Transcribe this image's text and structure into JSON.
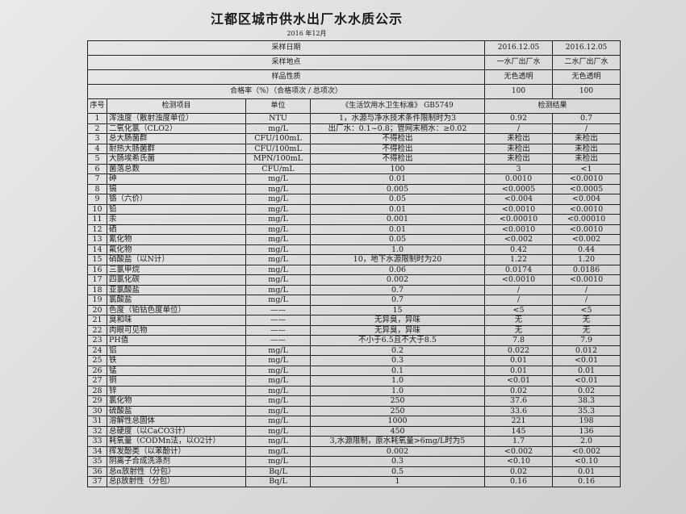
{
  "title": "江都区城市供水出厂水水质公示",
  "subtitle": "2016 年12月",
  "header": {
    "sample_date_label": "采样日期",
    "sample_dates": [
      "2016.12.05",
      "2016.12.05"
    ],
    "sample_site_label": "采样地点",
    "sample_sites": [
      "一水厂出厂水",
      "二水厂出厂水"
    ],
    "sample_nature_label": "样品性质",
    "sample_natures": [
      "无色透明",
      "无色透明"
    ],
    "pass_rate_label": "合格率（%）（合格项次 / 总项次）",
    "pass_rates": [
      "100",
      "100"
    ]
  },
  "columns": {
    "seq": "序号",
    "item": "检测项目",
    "unit": "单位",
    "standard": "《生活饮用水卫生标准》 GB5749",
    "result": "检测结果"
  },
  "rows": [
    {
      "no": "1",
      "item": "浑浊度（散射浊度单位）",
      "unit": "NTU",
      "std": "1，水源与净水技术条件限制时为3",
      "r1": "0.92",
      "r2": "0.7"
    },
    {
      "no": "2",
      "item": "二氧化氯（CLO2）",
      "unit": "mg/L",
      "std": "出厂水：0.1~0.8；管网末梢水：≥0.02",
      "r1": "/",
      "r2": "/"
    },
    {
      "no": "3",
      "item": "总大肠菌群",
      "unit": "CFU/100mL",
      "std": "不得检出",
      "r1": "未检出",
      "r2": "未检出"
    },
    {
      "no": "4",
      "item": "耐热大肠菌群",
      "unit": "CFU/100mL",
      "std": "不得检出",
      "r1": "未检出",
      "r2": "未检出"
    },
    {
      "no": "5",
      "item": "大肠埃希氏菌",
      "unit": "MPN/100mL",
      "std": "不得检出",
      "r1": "未检出",
      "r2": "未检出"
    },
    {
      "no": "6",
      "item": "菌落总数",
      "unit": "CFU/mL",
      "std": "100",
      "r1": "3",
      "r2": "<1"
    },
    {
      "no": "7",
      "item": "砷",
      "unit": "mg/L",
      "std": "0.01",
      "r1": "0.0010",
      "r2": "<0.0010"
    },
    {
      "no": "8",
      "item": "镉",
      "unit": "mg/L",
      "std": "0.005",
      "r1": "<0.0005",
      "r2": "<0.0005"
    },
    {
      "no": "9",
      "item": "铬（六价）",
      "unit": "mg/L",
      "std": "0.05",
      "r1": "<0.004",
      "r2": "<0.004"
    },
    {
      "no": "10",
      "item": "铅",
      "unit": "mg/L",
      "std": "0.01",
      "r1": "<0.0010",
      "r2": "<0.0010"
    },
    {
      "no": "11",
      "item": "汞",
      "unit": "mg/L",
      "std": "0.001",
      "r1": "<0.00010",
      "r2": "<0.00010"
    },
    {
      "no": "12",
      "item": "硒",
      "unit": "mg/L",
      "std": "0.01",
      "r1": "<0.0010",
      "r2": "<0.0010"
    },
    {
      "no": "13",
      "item": "氰化物",
      "unit": "mg/L",
      "std": "0.05",
      "r1": "<0.002",
      "r2": "<0.002"
    },
    {
      "no": "14",
      "item": "氟化物",
      "unit": "mg/L",
      "std": "1.0",
      "r1": "0.42",
      "r2": "0.44"
    },
    {
      "no": "15",
      "item": "硝酸盐（以N计）",
      "unit": "mg/L",
      "std": "10，地下水源限制时为20",
      "r1": "1.22",
      "r2": "1.20"
    },
    {
      "no": "16",
      "item": "三氯甲烷",
      "unit": "mg/L",
      "std": "0.06",
      "r1": "0.0174",
      "r2": "0.0186"
    },
    {
      "no": "17",
      "item": "四氯化碳",
      "unit": "mg/L",
      "std": "0.002",
      "r1": "<0.0010",
      "r2": "<0.0010"
    },
    {
      "no": "18",
      "item": "亚氯酸盐",
      "unit": "mg/L",
      "std": "0.7",
      "r1": "/",
      "r2": "/"
    },
    {
      "no": "19",
      "item": "氯酸盐",
      "unit": "mg/L",
      "std": "0.7",
      "r1": "/",
      "r2": "/"
    },
    {
      "no": "20",
      "item": "色度（铂钴色度单位）",
      "unit": "——",
      "std": "15",
      "r1": "<5",
      "r2": "<5"
    },
    {
      "no": "21",
      "item": "臭和味",
      "unit": "——",
      "std": "无异臭，异味",
      "r1": "无",
      "r2": "无"
    },
    {
      "no": "22",
      "item": "肉眼可见物",
      "unit": "——",
      "std": "无异臭，异味",
      "r1": "无",
      "r2": "无"
    },
    {
      "no": "23",
      "item": "PH值",
      "unit": "——",
      "std": "不小于6.5且不大于8.5",
      "r1": "7.8",
      "r2": "7.9"
    },
    {
      "no": "24",
      "item": "铝",
      "unit": "mg/L",
      "std": "0.2",
      "r1": "0.022",
      "r2": "0.012"
    },
    {
      "no": "25",
      "item": "铁",
      "unit": "mg/L",
      "std": "0.3",
      "r1": "0.01",
      "r2": "<0.01"
    },
    {
      "no": "26",
      "item": "锰",
      "unit": "mg/L",
      "std": "0.1",
      "r1": "0.01",
      "r2": "0.01"
    },
    {
      "no": "27",
      "item": "铜",
      "unit": "mg/L",
      "std": "1.0",
      "r1": "<0.01",
      "r2": "<0.01"
    },
    {
      "no": "28",
      "item": "锌",
      "unit": "mg/L",
      "std": "1.0",
      "r1": "0.02",
      "r2": "0.02"
    },
    {
      "no": "29",
      "item": "氯化物",
      "unit": "mg/L",
      "std": "250",
      "r1": "37.6",
      "r2": "38.3"
    },
    {
      "no": "30",
      "item": "硫酸盐",
      "unit": "mg/L",
      "std": "250",
      "r1": "33.6",
      "r2": "35.3"
    },
    {
      "no": "31",
      "item": "溶解性总固体",
      "unit": "mg/L",
      "std": "1000",
      "r1": "221",
      "r2": "198"
    },
    {
      "no": "32",
      "item": "总硬度（以CaCO3计）",
      "unit": "mg/L",
      "std": "450",
      "r1": "145",
      "r2": "136"
    },
    {
      "no": "33",
      "item": "耗氧量（CODMn法，以O2计）",
      "unit": "mg/L",
      "std": "3,水源限制，原水耗氧量>6mg/L时为5",
      "r1": "1.7",
      "r2": "2.0"
    },
    {
      "no": "34",
      "item": "挥发酚类（以苯酚计）",
      "unit": "mg/L",
      "std": "0.002",
      "r1": "<0.002",
      "r2": "<0.002"
    },
    {
      "no": "35",
      "item": "阴离子合成洗涤剂",
      "unit": "mg/L",
      "std": "0.3",
      "r1": "<0.10",
      "r2": "<0.10"
    },
    {
      "no": "36",
      "item": "总α放射性（分包）",
      "unit": "Bq/L",
      "std": "0.5",
      "r1": "0.02",
      "r2": "0.01"
    },
    {
      "no": "37",
      "item": "总β放射性（分包）",
      "unit": "Bq/L",
      "std": "1",
      "r1": "0.16",
      "r2": "0.16"
    }
  ]
}
